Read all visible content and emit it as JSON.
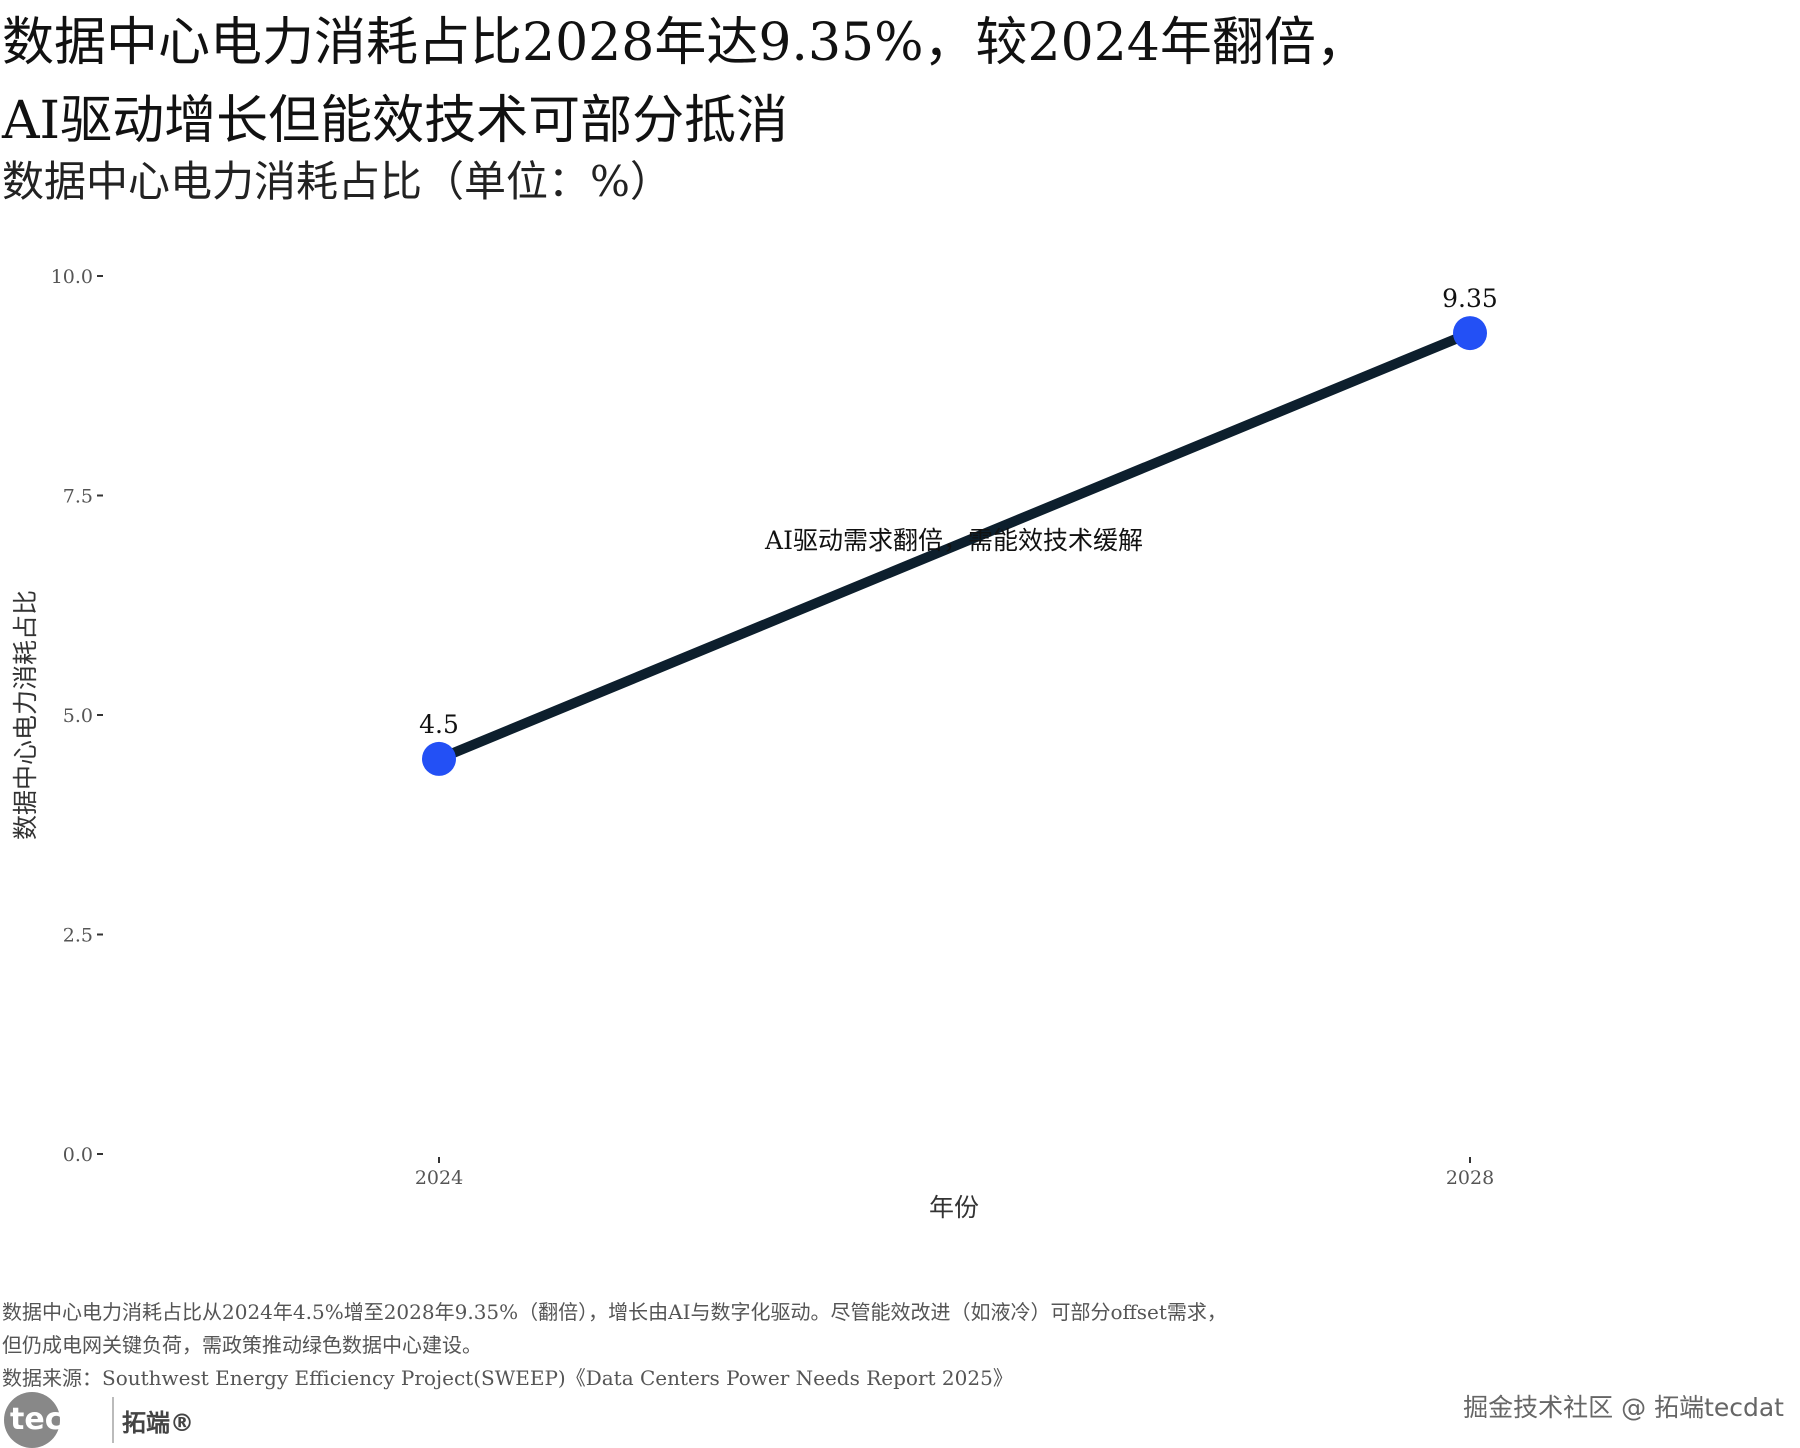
{
  "title_line1": "数据中心电力消耗占比2028年达9.35%，较2024年翻倍，",
  "title_line2": "AI驱动增长但能效技术可部分抵消",
  "subtitle": "数据中心电力消耗占比（单位：%）",
  "chart_data": {
    "type": "line",
    "x": [
      2024,
      2028
    ],
    "values": [
      4.5,
      9.35
    ],
    "data_labels": [
      "4.5",
      "9.35"
    ],
    "xlabel": "年份",
    "ylabel": "数据中心电力消耗占比",
    "ylim": [
      0,
      10
    ],
    "y_ticks": [
      "0.0",
      "2.5",
      "5.0",
      "7.5",
      "10.0"
    ],
    "x_ticks": [
      "2024",
      "2028"
    ],
    "annotation": "AI驱动需求翻倍，需能效技术缓解",
    "grid": false,
    "line_color": "#0d1f2d",
    "point_color": "#2350f5"
  },
  "caption_line1": "数据中心电力消耗占比从2024年4.5%增至2028年9.35%（翻倍），增长由AI与数字化驱动。尽管能效改进（如液冷）可部分offset需求，",
  "caption_line2": "但仍成电网关键负荷，需政策推动绿色数据中心建设。",
  "source": "数据来源：Southwest Energy Efficiency Project(SWEEP)《Data Centers Power Needs Report 2025》",
  "logo_text": "tecdat",
  "logo_cn": "拓端®",
  "watermark": "掘金技术社区 @ 拓端tecdat"
}
